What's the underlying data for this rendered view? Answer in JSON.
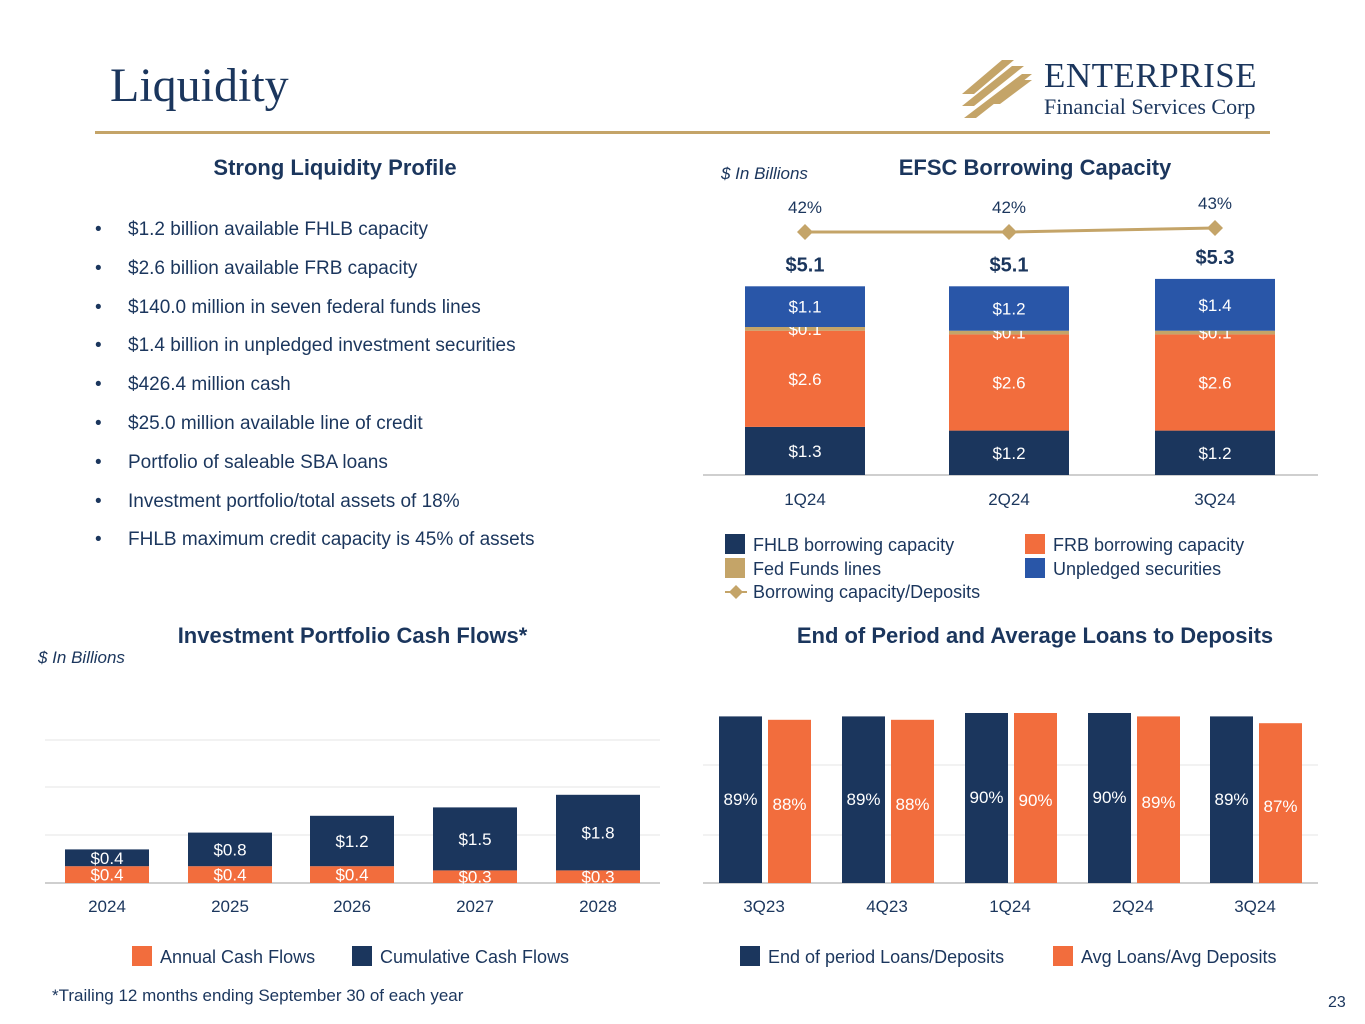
{
  "page": {
    "title": "Liquidity",
    "page_number": "23",
    "footnote": "*Trailing 12 months ending September 30 of each year"
  },
  "logo": {
    "word": "ENTERPRISE",
    "sub": "Financial Services Corp",
    "mark": "logo-stripes-icon"
  },
  "colors": {
    "navy": "#1b365d",
    "orange": "#f26d3d",
    "gold": "#c4a468",
    "blue": "#2956a8"
  },
  "liquidity_profile": {
    "title": "Strong Liquidity Profile",
    "bullets": [
      "$1.2 billion available FHLB capacity",
      "$2.6 billion available FRB capacity",
      "$140.0 million in seven federal funds lines",
      "$1.4 billion in unpledged investment securities",
      "$426.4 million cash",
      "$25.0 million available line of credit",
      "Portfolio of saleable SBA loans",
      "Investment portfolio/total assets of 18%",
      "FHLB maximum credit capacity is 45% of assets"
    ]
  },
  "chart_data": [
    {
      "id": "borrowing",
      "type": "bar",
      "stacked": true,
      "title": "EFSC Borrowing Capacity",
      "units_note": "$ In Billions",
      "categories": [
        "1Q24",
        "2Q24",
        "3Q24"
      ],
      "series": [
        {
          "name": "FHLB borrowing capacity",
          "values": [
            1.3,
            1.2,
            1.2
          ],
          "labels": [
            "$1.3",
            "$1.2",
            "$1.2"
          ],
          "color": "#1b365d",
          "label_color": "#ffffff"
        },
        {
          "name": "FRB borrowing capacity",
          "values": [
            2.6,
            2.6,
            2.6
          ],
          "labels": [
            "$2.6",
            "$2.6",
            "$2.6"
          ],
          "color": "#f26d3d",
          "label_color": "#ffffff"
        },
        {
          "name": "Fed Funds lines",
          "values": [
            0.1,
            0.1,
            0.1
          ],
          "labels": [
            "$0.1",
            "$0.1",
            "$0.1"
          ],
          "color": "#c4a468",
          "label_color": "#ffffff"
        },
        {
          "name": "Unpledged securities",
          "values": [
            1.1,
            1.2,
            1.4
          ],
          "labels": [
            "$1.1",
            "$1.2",
            "$1.4"
          ],
          "color": "#2956a8",
          "label_color": "#ffffff"
        }
      ],
      "totals": [
        "$5.1",
        "$5.1",
        "$5.3"
      ],
      "total_values": [
        5.1,
        5.1,
        5.3
      ],
      "line": {
        "name": "Borrowing capacity/Deposits",
        "values": [
          42,
          42,
          43
        ],
        "labels": [
          "42%",
          "42%",
          "43%"
        ],
        "color": "#c4a468"
      },
      "legend_position": "bottom"
    },
    {
      "id": "cashflows",
      "type": "bar",
      "stacked": true,
      "title": "Investment Portfolio Cash Flows*",
      "units_note": "$ In Billions",
      "categories": [
        "2024",
        "2025",
        "2026",
        "2027",
        "2028"
      ],
      "series": [
        {
          "name": "Annual Cash Flows",
          "values": [
            0.4,
            0.4,
            0.4,
            0.3,
            0.3
          ],
          "labels": [
            "$0.4",
            "$0.4",
            "$0.4",
            "$0.3",
            "$0.3"
          ],
          "color": "#f26d3d",
          "label_color": "#ffffff"
        },
        {
          "name": "Cumulative Cash Flows",
          "values": [
            0.4,
            0.8,
            1.2,
            1.5,
            1.8
          ],
          "labels": [
            "$0.4",
            "$0.8",
            "$1.2",
            "$1.5",
            "$1.8"
          ],
          "color": "#1b365d",
          "label_color": "#ffffff"
        }
      ],
      "grid": true,
      "legend_position": "bottom"
    },
    {
      "id": "loans",
      "type": "bar",
      "stacked": false,
      "title": "End of Period and Average Loans to Deposits",
      "categories": [
        "3Q23",
        "4Q23",
        "1Q24",
        "2Q24",
        "3Q24"
      ],
      "series": [
        {
          "name": "End of period Loans/Deposits",
          "values": [
            89,
            89,
            90,
            90,
            89
          ],
          "labels": [
            "89%",
            "89%",
            "90%",
            "90%",
            "89%"
          ],
          "color": "#1b365d",
          "label_color": "#ffffff"
        },
        {
          "name": "Avg Loans/Avg Deposits",
          "values": [
            88,
            88,
            90,
            89,
            87
          ],
          "labels": [
            "88%",
            "88%",
            "90%",
            "89%",
            "87%"
          ],
          "color": "#f26d3d",
          "label_color": "#ffffff"
        }
      ],
      "grid": true,
      "legend_position": "bottom"
    }
  ]
}
